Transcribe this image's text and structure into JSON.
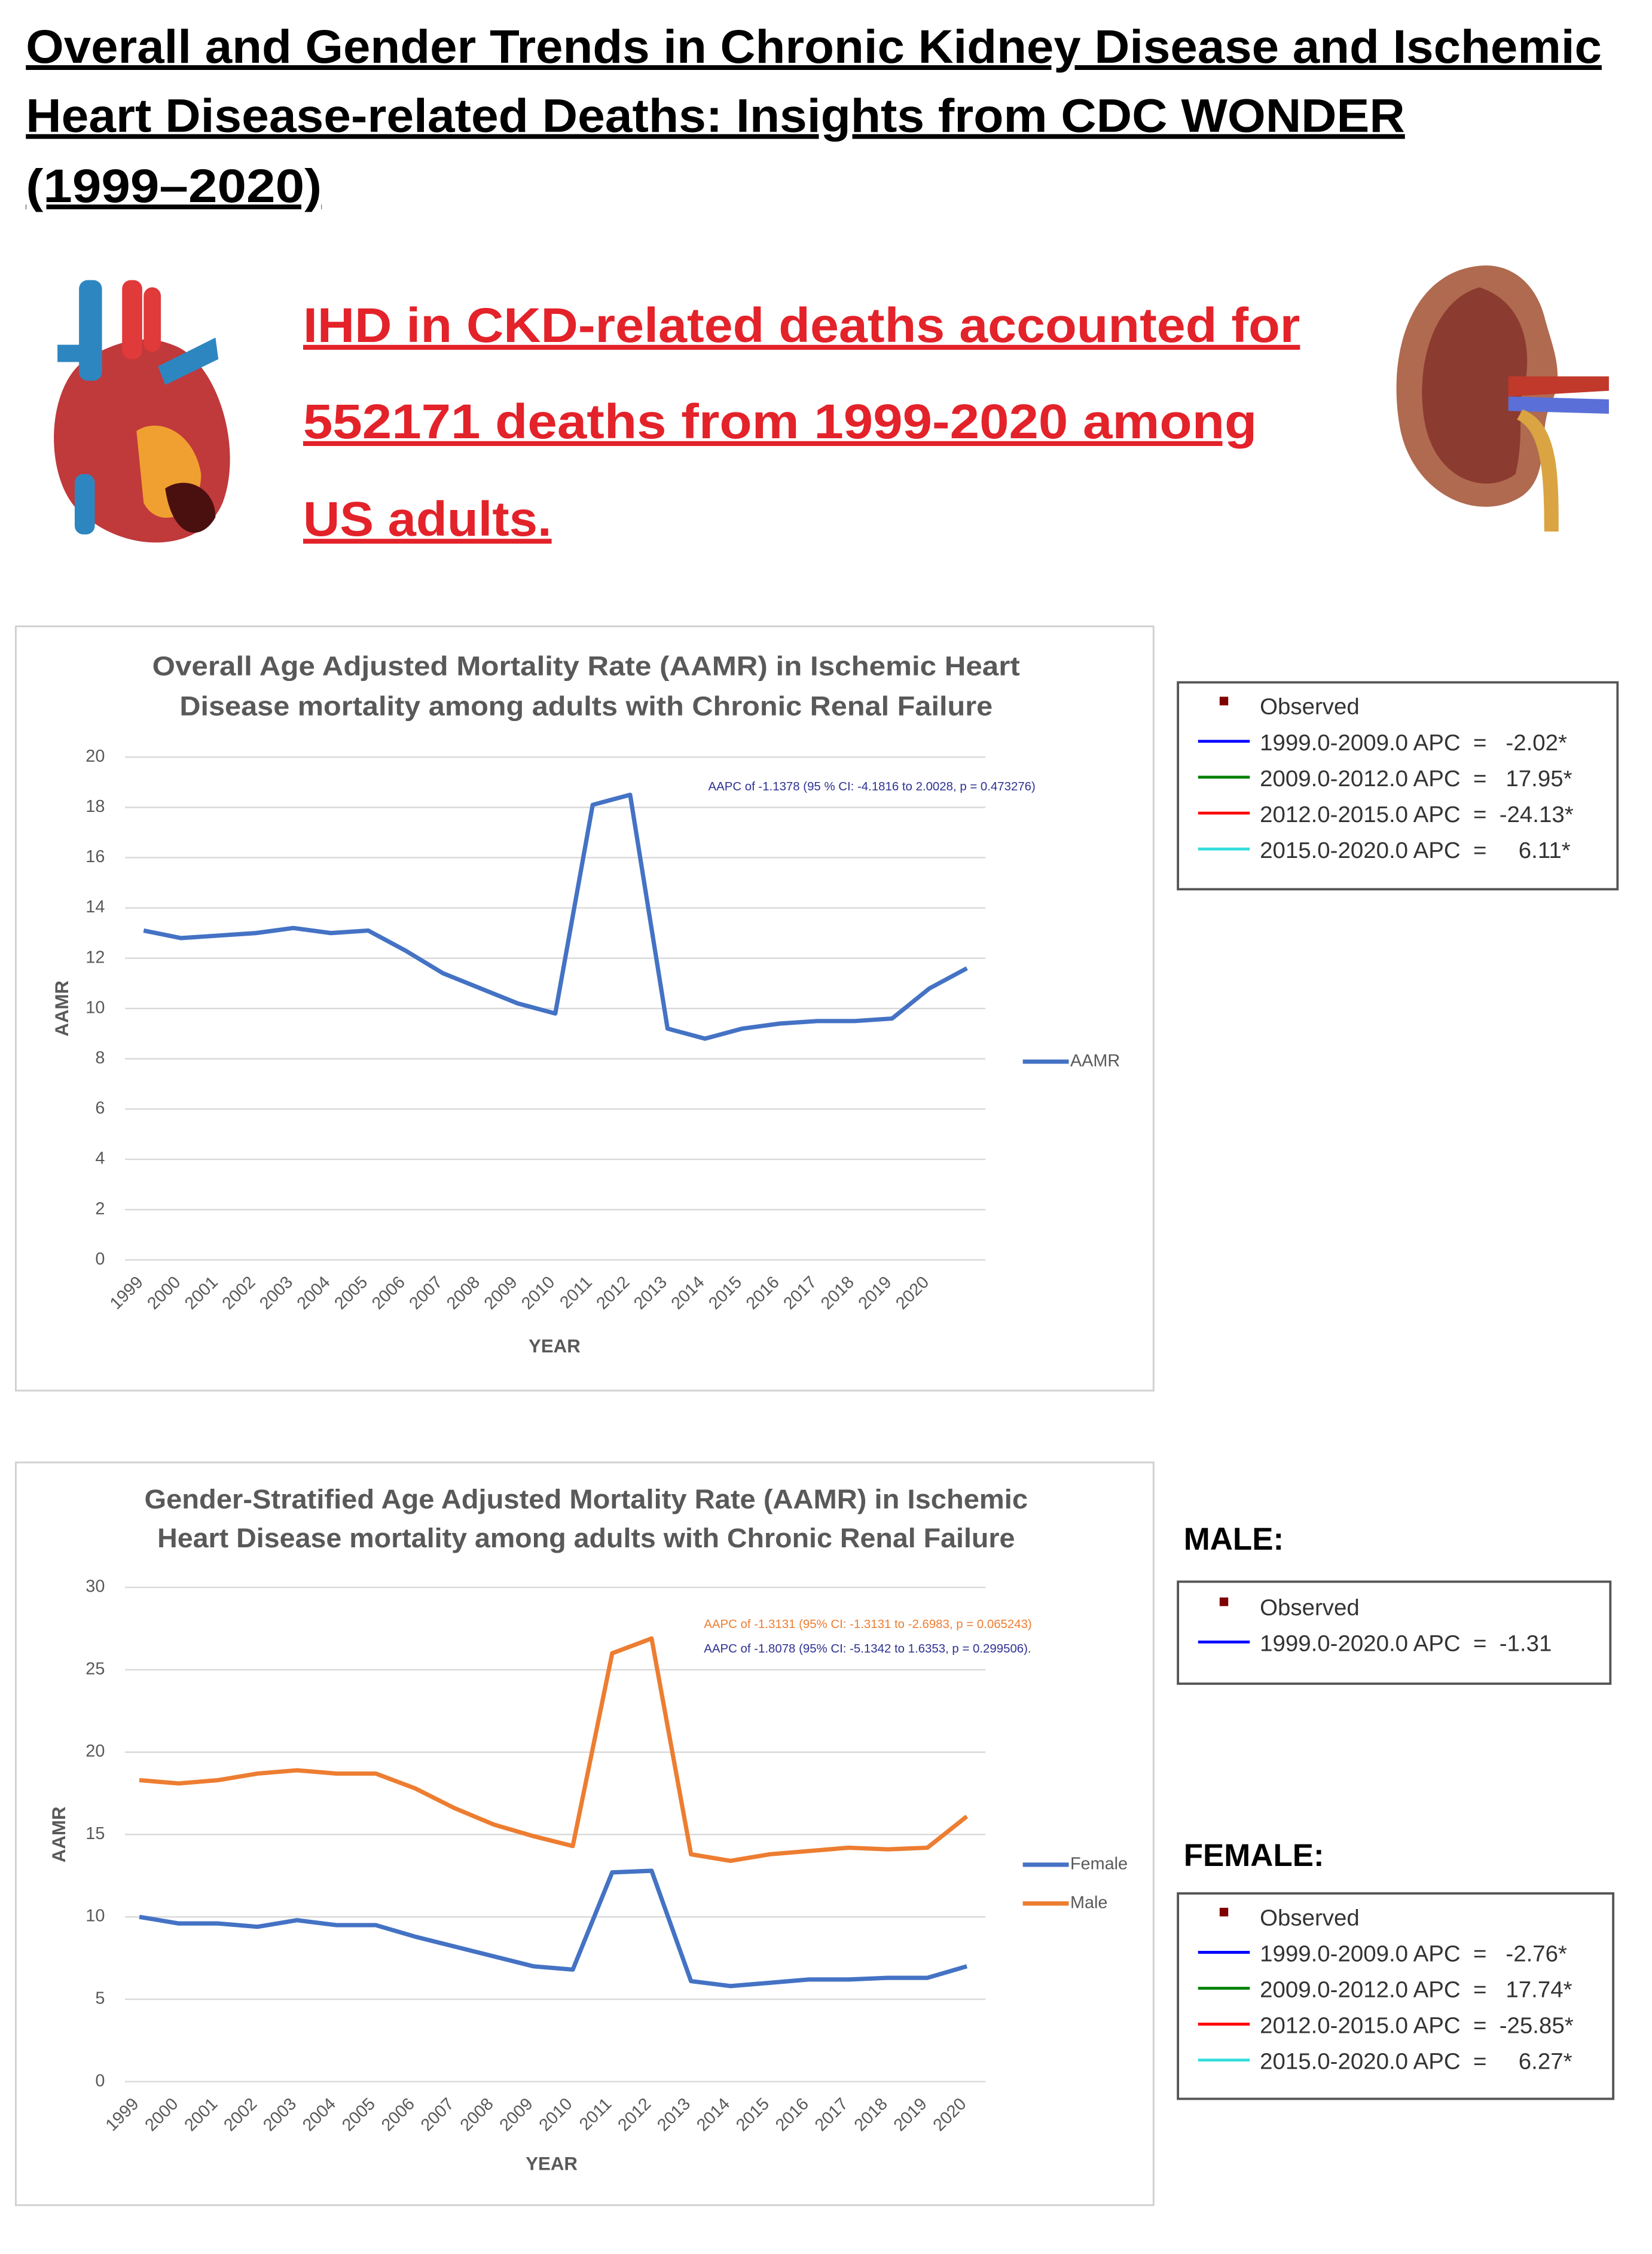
{
  "header": {
    "title": [
      "Overall and Gender Trends in Chronic Kidney Disease and Ischemic",
      "Heart Disease-related Deaths: Insights from CDC WONDER",
      "(1999–2020)"
    ],
    "headline": [
      "IHD in CKD-related deaths accounted for",
      "552171 deaths from 1999-2020 among",
      "US adults."
    ],
    "headline_color": "#e3222a"
  },
  "chart_data": [
    {
      "type": "line",
      "title": [
        "Overall Age Adjusted Mortality Rate (AAMR) in Ischemic Heart",
        "Disease mortality among adults with Chronic Renal Failure"
      ],
      "x_label": "YEAR",
      "y_label": "AAMR",
      "categories": [
        "1999",
        "2000",
        "2001",
        "2002",
        "2003",
        "2004",
        "2005",
        "2006",
        "2007",
        "2008",
        "2009",
        "2010",
        "2011",
        "2012",
        "2013",
        "2014",
        "2015",
        "2016",
        "2017",
        "2018",
        "2019",
        "2020",
        null
      ],
      "series": [
        {
          "name": "AAMR",
          "color": "#4472c4",
          "values": [
            13.1,
            12.8,
            12.9,
            13.0,
            13.2,
            13.0,
            13.1,
            12.3,
            11.4,
            10.8,
            10.2,
            9.8,
            18.1,
            18.5,
            9.2,
            8.8,
            9.2,
            9.4,
            9.5,
            9.5,
            9.6,
            10.8,
            11.6
          ]
        }
      ],
      "ylim": [
        0,
        20
      ],
      "yticks": [
        0,
        2,
        4,
        6,
        8,
        10,
        12,
        14,
        16,
        18,
        20
      ],
      "grid": true,
      "legend": "right",
      "annotations": [
        {
          "text": "AAPC of -1.1378 (95 % CI: -4.1816 to 2.0028, p = 0.473276)",
          "color": "#2e3192"
        }
      ]
    },
    {
      "type": "line",
      "title": [
        "Gender-Stratified Age Adjusted Mortality Rate (AAMR) in Ischemic",
        "Heart Disease mortality among adults with Chronic Renal Failure"
      ],
      "x_label": "YEAR",
      "y_label": "AAMR",
      "categories": [
        "1999",
        "2000",
        "2001",
        "2002",
        "2003",
        "2004",
        "2005",
        "2006",
        "2007",
        "2008",
        "2009",
        "2010",
        "2011",
        "2012",
        "2013",
        "2014",
        "2015",
        "2016",
        "2017",
        "2018",
        "2019",
        "2020"
      ],
      "series": [
        {
          "name": "Female",
          "color": "#4472c4",
          "values": [
            10.0,
            9.6,
            9.6,
            9.4,
            9.8,
            9.5,
            9.5,
            8.8,
            8.2,
            7.6,
            7.0,
            6.8,
            12.7,
            12.8,
            6.1,
            5.8,
            6.0,
            6.2,
            6.2,
            6.3,
            6.3,
            7.0
          ]
        },
        {
          "name": "Male",
          "color": "#ed7d31",
          "values": [
            18.3,
            18.1,
            18.3,
            18.7,
            18.9,
            18.7,
            18.7,
            17.8,
            16.6,
            15.6,
            14.9,
            14.3,
            26.0,
            26.9,
            13.8,
            13.4,
            13.8,
            14.0,
            14.2,
            14.1,
            14.2,
            16.1
          ]
        }
      ],
      "ylim": [
        0,
        30
      ],
      "yticks": [
        0,
        5,
        10,
        15,
        20,
        25,
        30
      ],
      "grid": true,
      "legend": "right",
      "annotations": [
        {
          "text": "AAPC of -1.3131 (95% CI: -1.3131 to -2.6983, p = 0.065243)",
          "color": "#ed7d31"
        },
        {
          "text": "AAPC of -1.8078 (95% CI: -5.1342 to 1.6353, p = 0.299506).",
          "color": "#2e3192"
        }
      ]
    }
  ],
  "joinpoint_legends": [
    {
      "heading": null,
      "observed": "Observed",
      "observed_color": "#7f0000",
      "rows": [
        {
          "text": "1999.0-2009.0 APC  =   -2.02*",
          "color": "#0000ff"
        },
        {
          "text": "2009.0-2012.0 APC  =   17.95*",
          "color": "#007f00"
        },
        {
          "text": "2012.0-2015.0 APC  =  -24.13*",
          "color": "#ff0000"
        },
        {
          "text": "2015.0-2020.0 APC  =     6.11*",
          "color": "#33dddd"
        }
      ]
    },
    {
      "heading": "MALE:",
      "observed": "Observed",
      "observed_color": "#7f0000",
      "rows": [
        {
          "text": "1999.0-2020.0 APC  =  -1.31",
          "color": "#0000ff"
        }
      ]
    },
    {
      "heading": "FEMALE:",
      "observed": "Observed",
      "observed_color": "#7f0000",
      "rows": [
        {
          "text": "1999.0-2009.0 APC  =   -2.76*",
          "color": "#0000ff"
        },
        {
          "text": "2009.0-2012.0 APC  =   17.74*",
          "color": "#007f00"
        },
        {
          "text": "2012.0-2015.0 APC  =  -25.85*",
          "color": "#ff0000"
        },
        {
          "text": "2015.0-2020.0 APC  =     6.27*",
          "color": "#33dddd"
        }
      ]
    }
  ]
}
